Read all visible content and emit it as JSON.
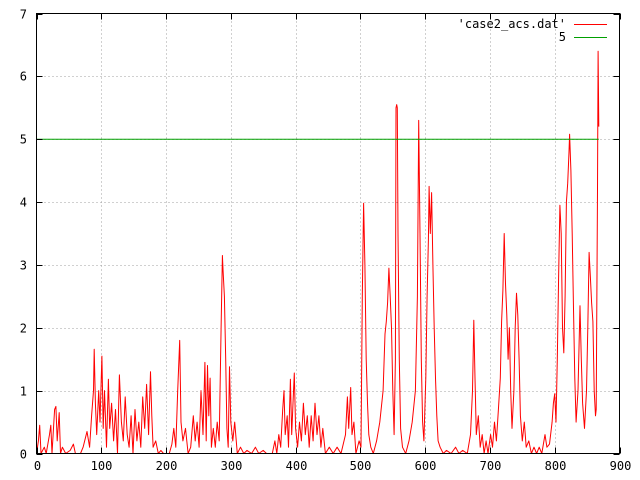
{
  "chart_data": {
    "type": "line",
    "title": "",
    "xlabel": "",
    "ylabel": "",
    "xlim": [
      0,
      900
    ],
    "ylim": [
      0,
      7
    ],
    "grid": true,
    "legend_position": "top-right",
    "x_ticks": [
      0,
      100,
      200,
      300,
      400,
      500,
      600,
      700,
      800,
      900
    ],
    "y_ticks": [
      0,
      1,
      2,
      3,
      4,
      5,
      6,
      7
    ],
    "series": [
      {
        "name": "'case2_acs.dat'",
        "color": "#ff0000",
        "style": "line",
        "points": [
          [
            0,
            0
          ],
          [
            3,
            0.2
          ],
          [
            5,
            0.45
          ],
          [
            7,
            0
          ],
          [
            12,
            0.1
          ],
          [
            15,
            0
          ],
          [
            20,
            0.3
          ],
          [
            22,
            0.45
          ],
          [
            24,
            0
          ],
          [
            28,
            0.7
          ],
          [
            30,
            0.75
          ],
          [
            32,
            0.2
          ],
          [
            35,
            0.65
          ],
          [
            37,
            0
          ],
          [
            40,
            0.1
          ],
          [
            45,
            0
          ],
          [
            52,
            0.05
          ],
          [
            57,
            0.15
          ],
          [
            60,
            0
          ],
          [
            68,
            0
          ],
          [
            72,
            0.1
          ],
          [
            78,
            0.35
          ],
          [
            82,
            0.1
          ],
          [
            85,
            0.6
          ],
          [
            88,
            1.0
          ],
          [
            89,
            1.66
          ],
          [
            91,
            0.8
          ],
          [
            93,
            0.3
          ],
          [
            96,
            1.0
          ],
          [
            98,
            0.5
          ],
          [
            101,
            1.55
          ],
          [
            103,
            0.4
          ],
          [
            105,
            1.0
          ],
          [
            108,
            0.1
          ],
          [
            111,
            1.18
          ],
          [
            113,
            0.4
          ],
          [
            116,
            0.8
          ],
          [
            119,
            0.2
          ],
          [
            122,
            0.7
          ],
          [
            125,
            0
          ],
          [
            128,
            1.25
          ],
          [
            131,
            0.5
          ],
          [
            134,
            0.2
          ],
          [
            137,
            0.9
          ],
          [
            140,
            0.3
          ],
          [
            143,
            0.1
          ],
          [
            146,
            0.6
          ],
          [
            149,
            0
          ],
          [
            152,
            0.7
          ],
          [
            155,
            0.2
          ],
          [
            158,
            0.5
          ],
          [
            161,
            0.1
          ],
          [
            164,
            0.9
          ],
          [
            167,
            0.4
          ],
          [
            170,
            1.1
          ],
          [
            173,
            0.3
          ],
          [
            176,
            1.3
          ],
          [
            178,
            0.6
          ],
          [
            180,
            0.1
          ],
          [
            184,
            0.2
          ],
          [
            188,
            0
          ],
          [
            192,
            0.05
          ],
          [
            196,
            0
          ],
          [
            205,
            0
          ],
          [
            209,
            0.15
          ],
          [
            212,
            0.4
          ],
          [
            215,
            0.1
          ],
          [
            218,
            1.0
          ],
          [
            221,
            1.8
          ],
          [
            223,
            0.5
          ],
          [
            226,
            0.2
          ],
          [
            230,
            0.4
          ],
          [
            234,
            0
          ],
          [
            238,
            0.1
          ],
          [
            242,
            0.6
          ],
          [
            245,
            0.2
          ],
          [
            248,
            0.5
          ],
          [
            251,
            0.1
          ],
          [
            254,
            1.0
          ],
          [
            257,
            0.3
          ],
          [
            260,
            1.45
          ],
          [
            262,
            0.2
          ],
          [
            264,
            1.4
          ],
          [
            266,
            0.6
          ],
          [
            268,
            1.2
          ],
          [
            270,
            0.1
          ],
          [
            273,
            0.4
          ],
          [
            276,
            0.1
          ],
          [
            279,
            0.5
          ],
          [
            282,
            0.2
          ],
          [
            285,
            2.0
          ],
          [
            287,
            3.15
          ],
          [
            288,
            2.9
          ],
          [
            290,
            2.5
          ],
          [
            292,
            1.5
          ],
          [
            294,
            0.4
          ],
          [
            296,
            0.1
          ],
          [
            298,
            1.38
          ],
          [
            300,
            0.5
          ],
          [
            303,
            0.2
          ],
          [
            306,
            0.5
          ],
          [
            310,
            0
          ],
          [
            315,
            0.1
          ],
          [
            320,
            0
          ],
          [
            325,
            0.05
          ],
          [
            332,
            0
          ],
          [
            338,
            0.1
          ],
          [
            343,
            0
          ],
          [
            350,
            0.05
          ],
          [
            355,
            0
          ],
          [
            364,
            0
          ],
          [
            368,
            0.2
          ],
          [
            371,
            0
          ],
          [
            374,
            0.3
          ],
          [
            377,
            0.1
          ],
          [
            380,
            0.7
          ],
          [
            382,
            1.0
          ],
          [
            384,
            0.3
          ],
          [
            387,
            0.6
          ],
          [
            389,
            0.1
          ],
          [
            392,
            1.18
          ],
          [
            394,
            0.3
          ],
          [
            396,
            0.8
          ],
          [
            398,
            1.28
          ],
          [
            400,
            0.4
          ],
          [
            403,
            0.1
          ],
          [
            406,
            0.5
          ],
          [
            409,
            0.2
          ],
          [
            412,
            0.8
          ],
          [
            415,
            0.3
          ],
          [
            418,
            0.6
          ],
          [
            421,
            0.1
          ],
          [
            424,
            0.6
          ],
          [
            427,
            0.2
          ],
          [
            430,
            0.8
          ],
          [
            433,
            0.3
          ],
          [
            436,
            0.6
          ],
          [
            439,
            0.1
          ],
          [
            442,
            0.4
          ],
          [
            446,
            0
          ],
          [
            452,
            0.1
          ],
          [
            458,
            0
          ],
          [
            464,
            0.1
          ],
          [
            470,
            0
          ],
          [
            477,
            0.3
          ],
          [
            480,
            0.9
          ],
          [
            482,
            0.4
          ],
          [
            485,
            1.05
          ],
          [
            487,
            0.3
          ],
          [
            490,
            0.5
          ],
          [
            493,
            0
          ],
          [
            498,
            0.2
          ],
          [
            501,
            0.1
          ],
          [
            503,
            2.5
          ],
          [
            505,
            3.98
          ],
          [
            507,
            3.0
          ],
          [
            509,
            1.5
          ],
          [
            511,
            0.8
          ],
          [
            513,
            0.3
          ],
          [
            516,
            0.1
          ],
          [
            520,
            0
          ],
          [
            525,
            0.2
          ],
          [
            530,
            0.5
          ],
          [
            535,
            1.0
          ],
          [
            538,
            1.9
          ],
          [
            540,
            2.1
          ],
          [
            542,
            2.4
          ],
          [
            544,
            2.95
          ],
          [
            546,
            2.5
          ],
          [
            548,
            2.0
          ],
          [
            550,
            1.0
          ],
          [
            552,
            0.3
          ],
          [
            554,
            1.5
          ],
          [
            555,
            5.5
          ],
          [
            556,
            5.55
          ],
          [
            557,
            5.5
          ],
          [
            558,
            3.5
          ],
          [
            560,
            1.5
          ],
          [
            562,
            0.4
          ],
          [
            565,
            0.1
          ],
          [
            570,
            0
          ],
          [
            575,
            0.2
          ],
          [
            580,
            0.5
          ],
          [
            585,
            1.0
          ],
          [
            588,
            2.5
          ],
          [
            590,
            5.3
          ],
          [
            592,
            3.5
          ],
          [
            594,
            1.5
          ],
          [
            596,
            0.5
          ],
          [
            598,
            0.2
          ],
          [
            601,
            1.2
          ],
          [
            603,
            2.5
          ],
          [
            605,
            3.4
          ],
          [
            606,
            4.25
          ],
          [
            608,
            3.5
          ],
          [
            610,
            4.15
          ],
          [
            612,
            3.0
          ],
          [
            614,
            2.0
          ],
          [
            616,
            1.2
          ],
          [
            618,
            0.6
          ],
          [
            620,
            0.2
          ],
          [
            623,
            0.1
          ],
          [
            628,
            0
          ],
          [
            633,
            0.05
          ],
          [
            640,
            0
          ],
          [
            647,
            0.1
          ],
          [
            652,
            0
          ],
          [
            658,
            0.05
          ],
          [
            665,
            0
          ],
          [
            670,
            0.3
          ],
          [
            673,
            1.0
          ],
          [
            675,
            2.12
          ],
          [
            677,
            1.2
          ],
          [
            679,
            0.3
          ],
          [
            682,
            0.6
          ],
          [
            685,
            0.1
          ],
          [
            688,
            0.3
          ],
          [
            691,
            0
          ],
          [
            694,
            0.2
          ],
          [
            697,
            0
          ],
          [
            701,
            0.3
          ],
          [
            704,
            0.1
          ],
          [
            707,
            0.5
          ],
          [
            710,
            0.2
          ],
          [
            713,
            0.7
          ],
          [
            716,
            1.2
          ],
          [
            718,
            2.1
          ],
          [
            720,
            2.6
          ],
          [
            722,
            3.5
          ],
          [
            724,
            2.7
          ],
          [
            726,
            2.2
          ],
          [
            728,
            1.5
          ],
          [
            730,
            2.0
          ],
          [
            732,
            1.0
          ],
          [
            734,
            0.4
          ],
          [
            737,
            1.0
          ],
          [
            739,
            2.0
          ],
          [
            741,
            2.55
          ],
          [
            743,
            2.2
          ],
          [
            745,
            1.5
          ],
          [
            747,
            0.6
          ],
          [
            750,
            0.2
          ],
          [
            753,
            0.5
          ],
          [
            756,
            0.1
          ],
          [
            760,
            0.2
          ],
          [
            764,
            0
          ],
          [
            768,
            0.1
          ],
          [
            772,
            0
          ],
          [
            776,
            0.1
          ],
          [
            780,
            0
          ],
          [
            785,
            0.3
          ],
          [
            788,
            0.1
          ],
          [
            792,
            0.15
          ],
          [
            796,
            0.5
          ],
          [
            798,
            0.8
          ],
          [
            800,
            0.95
          ],
          [
            802,
            0.5
          ],
          [
            804,
            1.5
          ],
          [
            806,
            2.8
          ],
          [
            808,
            3.95
          ],
          [
            810,
            3.5
          ],
          [
            812,
            2.0
          ],
          [
            814,
            1.6
          ],
          [
            816,
            2.5
          ],
          [
            818,
            4.0
          ],
          [
            820,
            4.3
          ],
          [
            822,
            4.8
          ],
          [
            823,
            5.08
          ],
          [
            825,
            4.5
          ],
          [
            827,
            3.5
          ],
          [
            829,
            2.3
          ],
          [
            831,
            1.2
          ],
          [
            833,
            0.5
          ],
          [
            836,
            1.0
          ],
          [
            839,
            2.35
          ],
          [
            841,
            1.5
          ],
          [
            843,
            0.8
          ],
          [
            846,
            0.4
          ],
          [
            849,
            1.0
          ],
          [
            851,
            2.0
          ],
          [
            853,
            3.2
          ],
          [
            855,
            2.8
          ],
          [
            857,
            2.4
          ],
          [
            859,
            2.1
          ],
          [
            861,
            1.0
          ],
          [
            863,
            0.6
          ],
          [
            864,
            0.7
          ],
          [
            866,
            4.2
          ],
          [
            867,
            6.4
          ],
          [
            868,
            5.2
          ]
        ]
      },
      {
        "name": "5",
        "color": "#00a000",
        "style": "line",
        "points": [
          [
            0,
            5
          ],
          [
            868,
            5
          ]
        ]
      }
    ]
  }
}
